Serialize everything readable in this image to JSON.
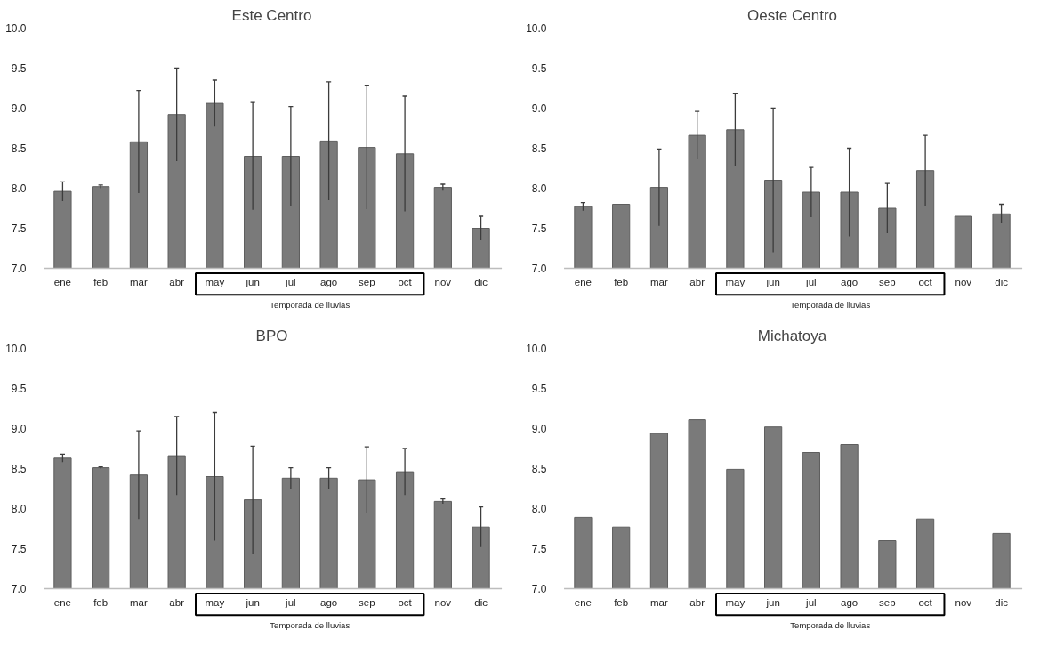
{
  "chart_data": [
    {
      "type": "bar",
      "title": "Este Centro",
      "categories": [
        "ene",
        "feb",
        "mar",
        "abr",
        "may",
        "jun",
        "jul",
        "ago",
        "sep",
        "oct",
        "nov",
        "dic"
      ],
      "values": [
        7.96,
        8.02,
        8.58,
        8.92,
        9.06,
        8.4,
        8.4,
        8.59,
        8.51,
        8.43,
        8.01,
        7.5
      ],
      "errors": [
        0.12,
        0.02,
        0.64,
        0.58,
        0.29,
        0.67,
        0.62,
        0.74,
        0.77,
        0.72,
        0.04,
        0.15
      ],
      "color": "#7a7a7a",
      "ylim": [
        7.0,
        10.0
      ],
      "yticks": [
        {
          "value": 7.0,
          "label": "7.0"
        },
        {
          "value": 7.5,
          "label": "7.5"
        },
        {
          "value": 8.0,
          "label": "8.0"
        },
        {
          "value": 8.5,
          "label": "8.5"
        },
        {
          "value": 9.0,
          "label": "9.0"
        },
        {
          "value": 9.5,
          "label": "9.5"
        },
        {
          "value": 10.0,
          "label": "10.0"
        }
      ],
      "annotations": [
        "Temporada de lluvias"
      ]
    },
    {
      "type": "bar",
      "title": "Oeste Centro",
      "categories": [
        "ene",
        "feb",
        "mar",
        "abr",
        "may",
        "jun",
        "jul",
        "ago",
        "sep",
        "oct",
        "nov",
        "dic"
      ],
      "values": [
        7.77,
        7.8,
        8.01,
        8.66,
        8.73,
        8.1,
        7.95,
        7.95,
        7.75,
        8.22,
        7.65,
        7.68
      ],
      "errors": [
        0.05,
        null,
        0.48,
        0.3,
        0.45,
        0.9,
        0.31,
        0.55,
        0.31,
        0.44,
        null,
        0.12
      ],
      "color": "#7a7a7a",
      "ylim": [
        7.0,
        10.0
      ],
      "yticks": [
        {
          "value": 7.0,
          "label": "7.0"
        },
        {
          "value": 7.5,
          "label": "7.5"
        },
        {
          "value": 8.0,
          "label": "8.0"
        },
        {
          "value": 8.5,
          "label": "8.5"
        },
        {
          "value": 9.0,
          "label": "9.0"
        },
        {
          "value": 9.5,
          "label": "9.5"
        },
        {
          "value": 10.0,
          "label": "10.0"
        }
      ],
      "annotations": [
        "Temporada de lluvias"
      ]
    },
    {
      "type": "bar",
      "title": "BPO",
      "categories": [
        "ene",
        "feb",
        "mar",
        "abr",
        "may",
        "jun",
        "jul",
        "ago",
        "sep",
        "oct",
        "nov",
        "dic"
      ],
      "values": [
        8.63,
        8.51,
        8.42,
        8.66,
        8.4,
        8.11,
        8.38,
        8.38,
        8.36,
        8.46,
        8.09,
        7.77
      ],
      "errors": [
        0.05,
        0.01,
        0.55,
        0.49,
        0.8,
        0.67,
        0.13,
        0.13,
        0.41,
        0.29,
        0.03,
        0.25
      ],
      "color": "#7a7a7a",
      "ylim": [
        7.0,
        10.0
      ],
      "yticks": [
        {
          "value": 7.0,
          "label": "7.0"
        },
        {
          "value": 7.5,
          "label": "7.5"
        },
        {
          "value": 8.0,
          "label": "8.0"
        },
        {
          "value": 8.5,
          "label": "8.5"
        },
        {
          "value": 9.0,
          "label": "9.0"
        },
        {
          "value": 9.5,
          "label": "9.5"
        },
        {
          "value": 10.0,
          "label": "10.0"
        }
      ],
      "annotations": [
        "Temporada de lluvias"
      ]
    },
    {
      "type": "bar",
      "title": "Michatoya",
      "categories": [
        "ene",
        "feb",
        "mar",
        "abr",
        "may",
        "jun",
        "jul",
        "ago",
        "sep",
        "oct",
        "nov",
        "dic"
      ],
      "values": [
        7.89,
        7.77,
        8.94,
        9.11,
        8.49,
        9.02,
        8.7,
        8.8,
        7.6,
        7.87,
        null,
        7.69
      ],
      "color": "#7a7a7a",
      "ylim": [
        7.0,
        10.0
      ],
      "yticks": [
        {
          "value": 7.0,
          "label": "7.0"
        },
        {
          "value": 7.5,
          "label": "7.5"
        },
        {
          "value": 8.0,
          "label": "8.0"
        },
        {
          "value": 8.5,
          "label": "8.5"
        },
        {
          "value": 9.0,
          "label": "9.0"
        },
        {
          "value": 9.5,
          "label": "9.5"
        },
        {
          "value": 10.0,
          "label": "10.0"
        }
      ],
      "annotations": [
        "Temporada de lluvias"
      ]
    }
  ]
}
